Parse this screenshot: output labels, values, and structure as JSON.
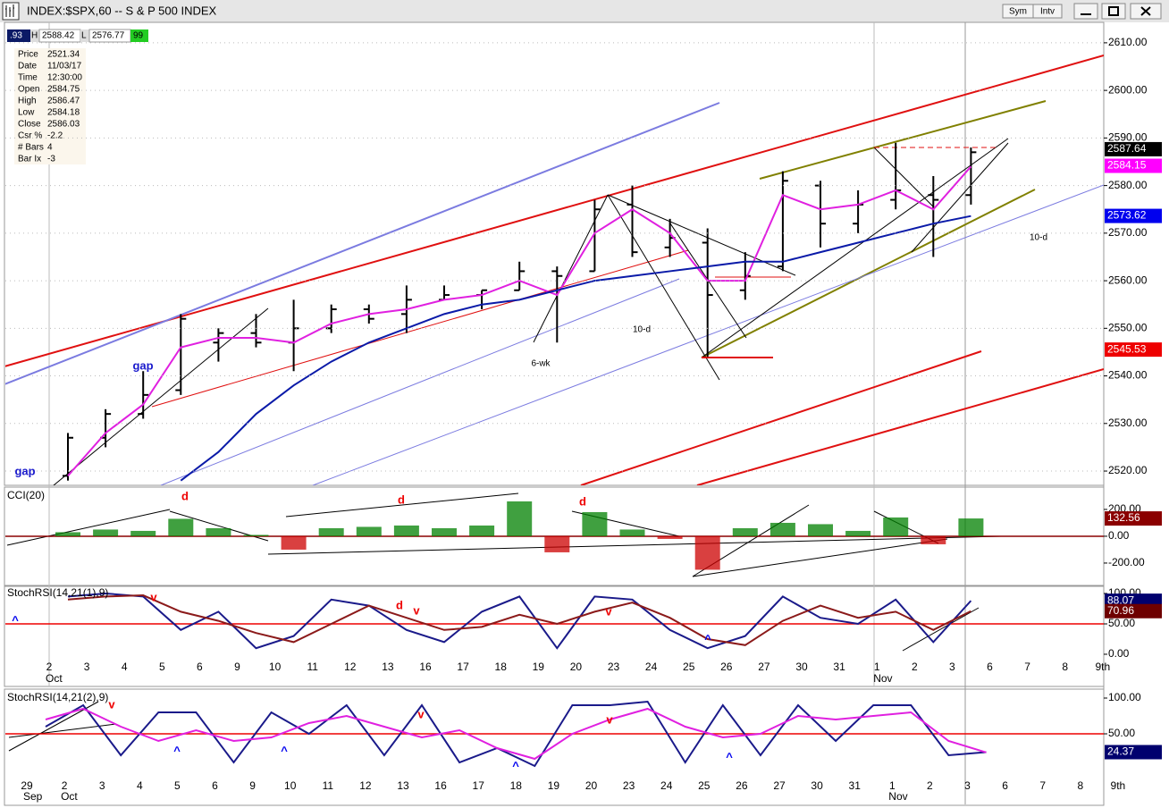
{
  "window": {
    "title": "INDEX:$SPX,60 -- S & P 500 INDEX",
    "buttons": [
      "Sym",
      "Intv"
    ]
  },
  "quote_bar": [
    ".93",
    "H",
    "2588.42",
    "L",
    "2576.77",
    "99"
  ],
  "data_window": [
    [
      "Price",
      "2521.34"
    ],
    [
      "Date",
      "11/03/17"
    ],
    [
      "Time",
      "12:30:00"
    ],
    [
      "Open",
      "2584.75"
    ],
    [
      "High",
      "2586.47"
    ],
    [
      "Low",
      "2584.18"
    ],
    [
      "Close",
      "2586.03"
    ],
    [
      "Csr %",
      "-2.2"
    ],
    [
      "# Bars",
      "4"
    ],
    [
      "Bar Ix",
      "-3"
    ]
  ],
  "chart_data": [
    {
      "type": "ohlc",
      "categories": [
        "2",
        "3",
        "4",
        "5",
        "6",
        "9",
        "10",
        "11",
        "12",
        "13",
        "16",
        "17",
        "18",
        "19",
        "20",
        "23",
        "24",
        "25",
        "26",
        "27",
        "30",
        "31",
        "1",
        "2",
        "3",
        "6",
        "7",
        "8",
        "9th"
      ],
      "x_month_labels": [
        "Oct",
        "Nov"
      ],
      "open": [
        2519,
        2527,
        2532,
        2537,
        2547,
        2549,
        2547,
        2550,
        2554,
        2553,
        2556,
        2557,
        2558,
        2562,
        2562,
        2576,
        2567,
        2568,
        2558,
        2563,
        2580,
        2572,
        2577,
        2578,
        2578,
        null,
        null,
        null,
        null
      ],
      "high": [
        2528,
        2533,
        2541,
        2553,
        2550,
        2553,
        2556,
        2555,
        2555,
        2559,
        2559,
        2558,
        2564,
        2563,
        2577,
        2580,
        2573,
        2571,
        2566,
        2583,
        2581,
        2579,
        2589,
        2582,
        2588,
        null,
        null,
        null,
        null
      ],
      "low": [
        2518,
        2525,
        2531,
        2536,
        2543,
        2546,
        2541,
        2549,
        2551,
        2549,
        2556,
        2554,
        2558,
        2547,
        2562,
        2565,
        2565,
        2544,
        2556,
        2562,
        2567,
        2570,
        2575,
        2565,
        2576,
        null,
        null,
        null,
        null
      ],
      "close": [
        2527,
        2532,
        2536,
        2552,
        2549,
        2547,
        2550,
        2554,
        2552,
        2556,
        2557,
        2558,
        2562,
        2561,
        2575,
        2566,
        2569,
        2557,
        2561,
        2581,
        2572,
        2576,
        2579,
        2577,
        2587,
        null,
        null,
        null,
        null
      ],
      "color": "#000000",
      "overlays": [
        {
          "color": "#e020e0",
          "values": [
            2519,
            2528,
            2534,
            2546,
            2548,
            2548,
            2547,
            2551,
            2553,
            2554,
            2556,
            2557,
            2560,
            2557,
            2570,
            2575,
            2570,
            2560,
            2560,
            2578,
            2575,
            2576,
            2579,
            2575,
            2584,
            null,
            null,
            null,
            null
          ]
        },
        {
          "color": "#0a1aa8",
          "values": [
            null,
            null,
            null,
            2518,
            2524,
            2532,
            2538,
            2543,
            2547,
            2550,
            2553,
            2555,
            2556,
            2558,
            2560,
            2561,
            2562,
            2563,
            2564,
            2564,
            2566,
            2568,
            2570,
            2572,
            2573.6,
            null,
            null,
            null,
            null
          ]
        }
      ],
      "ylim": [
        2517,
        2614.3
      ],
      "yticks": [
        {
          "value": 2520,
          "label": "2520.00"
        },
        {
          "value": 2530,
          "label": "2530.00"
        },
        {
          "value": 2540,
          "label": "2540.00"
        },
        {
          "value": 2550,
          "label": "2550.00"
        },
        {
          "value": 2560,
          "label": "2560.00"
        },
        {
          "value": 2570,
          "label": "2570.00"
        },
        {
          "value": 2580,
          "label": "2580.00"
        },
        {
          "value": 2590,
          "label": "2590.00"
        },
        {
          "value": 2600,
          "label": "2600.00"
        },
        {
          "value": 2610,
          "label": "2610.00"
        }
      ],
      "grid": true,
      "value_tags": [
        {
          "value": 2587.64,
          "color": "#000000"
        },
        {
          "value": 2584.15,
          "color": "#ff00ff"
        },
        {
          "value": 2573.62,
          "color": "#0000ee"
        },
        {
          "value": 2545.53,
          "color": "#ee0000"
        }
      ],
      "annotations": [
        {
          "text": "gap",
          "color": "#1a1acc"
        },
        {
          "text": "gap",
          "color": "#1a1acc"
        },
        {
          "text": "6-wk",
          "color": "#000000"
        },
        {
          "text": "10-d",
          "color": "#000000"
        },
        {
          "text": "10-d",
          "color": "#000000"
        }
      ]
    },
    {
      "type": "bar",
      "label": "CCI(20)",
      "values": [
        30,
        50,
        40,
        130,
        60,
        10,
        -100,
        60,
        70,
        80,
        60,
        80,
        260,
        -120,
        180,
        50,
        -20,
        -250,
        60,
        100,
        90,
        40,
        140,
        -60,
        132.56,
        null,
        null,
        null,
        null
      ],
      "pos_color": "#008000",
      "neg_color": "#cc0000",
      "ref_line": 0,
      "ref_color": "#8b0000",
      "ylim": [
        -367,
        353
      ],
      "yticks": [
        {
          "value": 200,
          "label": "200.00"
        },
        {
          "value": 0,
          "label": "0.00"
        },
        {
          "value": -200,
          "label": "-200.00"
        }
      ],
      "value_tags": [
        {
          "value": 132.56,
          "color": "#8b0000"
        }
      ],
      "annotations": [
        {
          "text": "d",
          "color": "#ee0000"
        },
        {
          "text": "d",
          "color": "#ee0000"
        },
        {
          "text": "d",
          "color": "#ee0000"
        }
      ]
    },
    {
      "type": "line",
      "label": "StochRSI(14,21(1),9)",
      "series": [
        {
          "color": "#1a1a8a",
          "values": [
            95,
            100,
            95,
            40,
            70,
            10,
            30,
            90,
            80,
            40,
            20,
            70,
            95,
            10,
            95,
            90,
            40,
            10,
            30,
            95,
            60,
            50,
            90,
            20,
            88.07,
            null,
            null,
            null,
            null
          ]
        },
        {
          "color": "#8b1a1a",
          "values": [
            90,
            95,
            97,
            70,
            55,
            35,
            20,
            50,
            80,
            60,
            40,
            45,
            65,
            50,
            70,
            85,
            60,
            25,
            15,
            55,
            80,
            60,
            70,
            40,
            70.96,
            null,
            null,
            null,
            null
          ]
        }
      ],
      "ref_line": 50,
      "ref_color": "#ee0000",
      "ylim": [
        -11.8,
        110.3
      ],
      "yticks": [
        {
          "value": 100,
          "label": "100.00"
        },
        {
          "value": 50,
          "label": "50.00"
        },
        {
          "value": 0,
          "label": "0.00"
        }
      ],
      "value_tags": [
        {
          "value": 88.07,
          "color": "#00006e"
        },
        {
          "value": 70.96,
          "color": "#6e0000"
        }
      ],
      "annotations": [
        {
          "text": "v",
          "color": "#ee0000"
        },
        {
          "text": "^",
          "color": "#0000ee"
        },
        {
          "text": "d",
          "color": "#ee0000"
        },
        {
          "text": "v",
          "color": "#ee0000"
        },
        {
          "text": "v",
          "color": "#ee0000"
        },
        {
          "text": "^",
          "color": "#0000ee"
        }
      ]
    },
    {
      "type": "line",
      "label": "StochRSI(14,21(2),9)",
      "categories": [
        "29",
        "2",
        "3",
        "4",
        "5",
        "6",
        "9",
        "10",
        "11",
        "12",
        "13",
        "16",
        "17",
        "18",
        "19",
        "20",
        "23",
        "24",
        "25",
        "26",
        "27",
        "30",
        "31",
        "1",
        "2",
        "3",
        "6",
        "7",
        "8",
        "9th"
      ],
      "x_month_labels": [
        "Sep",
        "Oct",
        "Nov"
      ],
      "series": [
        {
          "color": "#1a1a8a",
          "values": [
            60,
            90,
            20,
            80,
            80,
            10,
            80,
            50,
            90,
            20,
            90,
            10,
            30,
            5,
            90,
            90,
            95,
            10,
            90,
            20,
            90,
            40,
            90,
            90,
            20,
            24.37,
            null,
            null,
            null,
            null
          ]
        },
        {
          "color": "#e020e0",
          "values": [
            70,
            85,
            60,
            40,
            55,
            40,
            45,
            65,
            75,
            60,
            45,
            55,
            30,
            15,
            50,
            70,
            85,
            60,
            45,
            50,
            75,
            70,
            75,
            80,
            40,
            24,
            null,
            null,
            null,
            null
          ]
        }
      ],
      "ref_line": 50,
      "ref_color": "#ee0000",
      "ylim": [
        -11.25,
        110
      ],
      "yticks": [
        {
          "value": 100,
          "label": "100.00"
        },
        {
          "value": 50,
          "label": "50.00"
        }
      ],
      "value_tags": [
        {
          "value": 24.37,
          "color": "#00006e"
        }
      ],
      "annotations": [
        {
          "text": "v",
          "color": "#ee0000"
        },
        {
          "text": "^",
          "color": "#0000ee"
        },
        {
          "text": "^",
          "color": "#0000ee"
        },
        {
          "text": "v",
          "color": "#ee0000"
        },
        {
          "text": "^",
          "color": "#0000ee"
        },
        {
          "text": "v",
          "color": "#ee0000"
        },
        {
          "text": "^",
          "color": "#0000ee"
        }
      ]
    }
  ]
}
